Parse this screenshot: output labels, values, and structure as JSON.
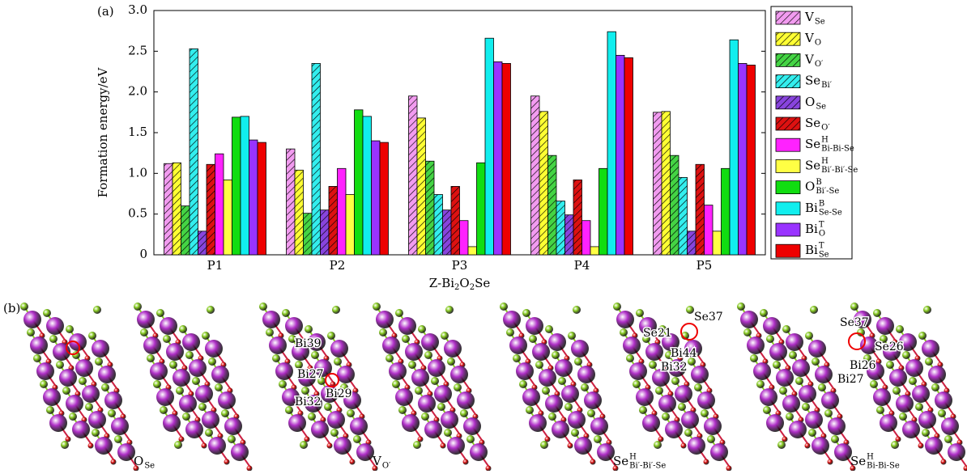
{
  "chart_data": {
    "type": "bar",
    "panel_label": "(a)",
    "ylabel": "Formation energy/eV",
    "xlabel": [
      {
        "t": "Z-Bi"
      },
      {
        "t": "2",
        "sub": true
      },
      {
        "t": "O"
      },
      {
        "t": "2",
        "sub": true
      },
      {
        "t": "Se"
      }
    ],
    "categories": [
      "P1",
      "P2",
      "P3",
      "P4",
      "P5"
    ],
    "ylim": [
      0,
      3
    ],
    "yticks": [
      0,
      0.5,
      {
        "value": 1,
        "label": "1.0"
      },
      1.5,
      {
        "value": 2,
        "label": "2.0"
      },
      2.5,
      {
        "value": 3,
        "label": "3.0"
      }
    ],
    "series": [
      {
        "name": "V",
        "sub": "Se",
        "color": "#f29bf0",
        "hatch": true,
        "values": [
          1.12,
          1.3,
          1.95,
          1.95,
          1.75
        ]
      },
      {
        "name": "V",
        "sub": "O",
        "color": "#ffff33",
        "hatch": true,
        "values": [
          1.13,
          1.04,
          1.68,
          1.76,
          1.76
        ]
      },
      {
        "name": "V",
        "sub": "O′",
        "color": "#44d444",
        "hatch": true,
        "values": [
          0.6,
          0.51,
          1.15,
          1.22,
          1.22
        ]
      },
      {
        "name": "Se",
        "sub": "Bi′",
        "color": "#33eeee",
        "hatch": true,
        "values": [
          2.53,
          2.35,
          0.74,
          0.66,
          0.95
        ]
      },
      {
        "name": "O",
        "sub": "Se",
        "color": "#8844dd",
        "hatch": true,
        "values": [
          0.29,
          0.55,
          0.55,
          0.49,
          0.29
        ]
      },
      {
        "name": "Se",
        "sub": "O′",
        "color": "#dd1111",
        "hatch": true,
        "values": [
          1.11,
          0.84,
          0.84,
          0.92,
          1.11
        ]
      },
      {
        "name": "Se",
        "sup": "H",
        "sub": "Bi-Bi-Se",
        "color": "#ff22ff",
        "values": [
          1.24,
          1.06,
          0.42,
          0.42,
          0.61
        ]
      },
      {
        "name": "Se",
        "sup": "H",
        "sub": "Bi′-Bi′-Se",
        "color": "#ffff44",
        "values": [
          0.92,
          0.74,
          0.1,
          0.1,
          0.29
        ]
      },
      {
        "name": "O",
        "sup": "B",
        "sub": "Bi′-Se",
        "color": "#11dd11",
        "values": [
          1.69,
          1.78,
          1.13,
          1.06,
          1.06
        ]
      },
      {
        "name": "Bi",
        "sup": "B",
        "sub": "Se-Se",
        "color": "#11eeee",
        "values": [
          1.7,
          1.7,
          2.66,
          2.74,
          2.64
        ]
      },
      {
        "name": "Bi",
        "sup": "T",
        "sub": "O",
        "color": "#9933ff",
        "values": [
          1.41,
          1.4,
          2.37,
          2.45,
          2.35
        ]
      },
      {
        "name": "Bi",
        "sup": "T",
        "sub": "Se",
        "color": "#ee0000",
        "values": [
          1.38,
          1.38,
          2.35,
          2.42,
          2.33
        ]
      }
    ]
  },
  "structures": {
    "panel_label": "(b)",
    "panels": [
      {
        "caption": {
          "name": "O",
          "sub": "Se"
        },
        "labels": []
      },
      {
        "caption": {
          "name": "V",
          "sub": "O′"
        },
        "labels": [
          "Bi39",
          "Bi27",
          "Bi29",
          "Bi32"
        ]
      },
      {
        "caption": {
          "name": "Se",
          "sup": "H",
          "sub": "Bi′-Bi′-Se"
        },
        "labels": [
          "Se21",
          "Se37",
          "Bi44",
          "Bi32"
        ]
      },
      {
        "caption": {
          "name": "Se",
          "sup": "H",
          "sub": "Bi-Bi-Se"
        },
        "labels": [
          "Se37",
          "Se26",
          "Bi26",
          "Bi27"
        ]
      }
    ]
  }
}
